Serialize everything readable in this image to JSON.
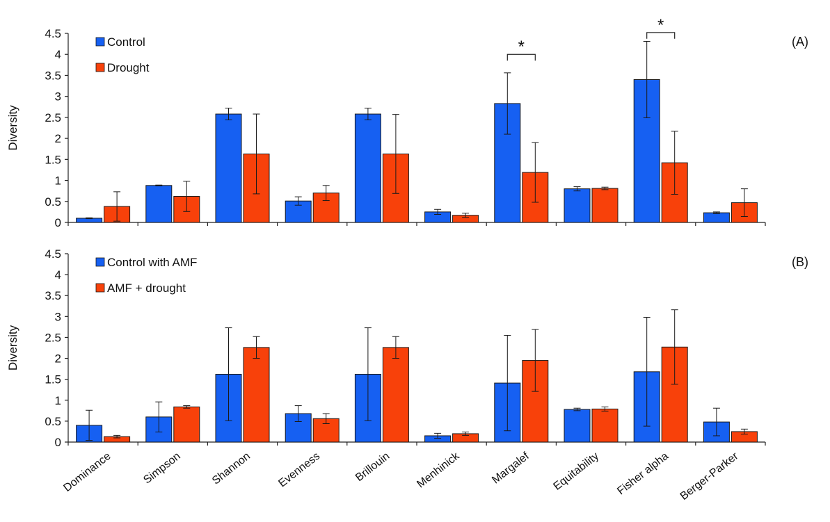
{
  "chart_data": [
    {
      "type": "bar",
      "panel_label": "(A)",
      "ylabel": "Diversity",
      "ylim": [
        0,
        4.5
      ],
      "yticks": [
        "0",
        "0.5",
        "1",
        "1.5",
        "2",
        "2.5",
        "3",
        "3.5",
        "4",
        "4.5"
      ],
      "categories": [
        "Dominance",
        "Simpson",
        "Shannon",
        "Evenness",
        "Brillouin",
        "Menhinick",
        "Margalef",
        "Equitability",
        "Fisher alpha",
        "Berger-Parker"
      ],
      "legend_position": "top-left",
      "series": [
        {
          "name": "Control",
          "color": "#1660f2",
          "values": [
            0.1,
            0.88,
            2.58,
            0.51,
            2.58,
            0.25,
            2.83,
            0.8,
            3.4,
            0.23
          ],
          "errors": [
            0.01,
            0.01,
            0.14,
            0.1,
            0.14,
            0.06,
            0.73,
            0.05,
            0.91,
            0.02
          ]
        },
        {
          "name": "Drought",
          "color": "#f8410a",
          "values": [
            0.38,
            0.62,
            1.63,
            0.7,
            1.63,
            0.17,
            1.19,
            0.81,
            1.42,
            0.47
          ],
          "errors": [
            0.35,
            0.36,
            0.95,
            0.18,
            0.94,
            0.05,
            0.71,
            0.03,
            0.75,
            0.33
          ]
        }
      ],
      "significance": [
        {
          "category": "Margalef",
          "label": "*",
          "bracket_y": 4.0
        },
        {
          "category": "Fisher alpha",
          "label": "*",
          "bracket_y": 4.52
        }
      ]
    },
    {
      "type": "bar",
      "panel_label": "(B)",
      "ylabel": "Diversity",
      "ylim": [
        0,
        4.5
      ],
      "yticks": [
        "0",
        "0.5",
        "1",
        "1.5",
        "2",
        "2.5",
        "3",
        "3.5",
        "4",
        "4.5"
      ],
      "categories": [
        "Dominance",
        "Simpson",
        "Shannon",
        "Evenness",
        "Brillouin",
        "Menhinick",
        "Margalef",
        "Equitability",
        "Fisher alpha",
        "Berger-Parker"
      ],
      "legend_position": "top-left",
      "series": [
        {
          "name": "Control with AMF",
          "color": "#1660f2",
          "values": [
            0.4,
            0.6,
            1.62,
            0.68,
            1.62,
            0.15,
            1.41,
            0.78,
            1.68,
            0.48
          ],
          "errors": [
            0.36,
            0.36,
            1.11,
            0.19,
            1.11,
            0.06,
            1.14,
            0.03,
            1.3,
            0.33
          ]
        },
        {
          "name": "AMF + drought",
          "color": "#f8410a",
          "values": [
            0.13,
            0.84,
            2.26,
            0.56,
            2.26,
            0.2,
            1.95,
            0.79,
            2.27,
            0.25
          ],
          "errors": [
            0.03,
            0.03,
            0.26,
            0.12,
            0.26,
            0.04,
            0.74,
            0.05,
            0.89,
            0.06
          ]
        }
      ],
      "significance": []
    }
  ]
}
